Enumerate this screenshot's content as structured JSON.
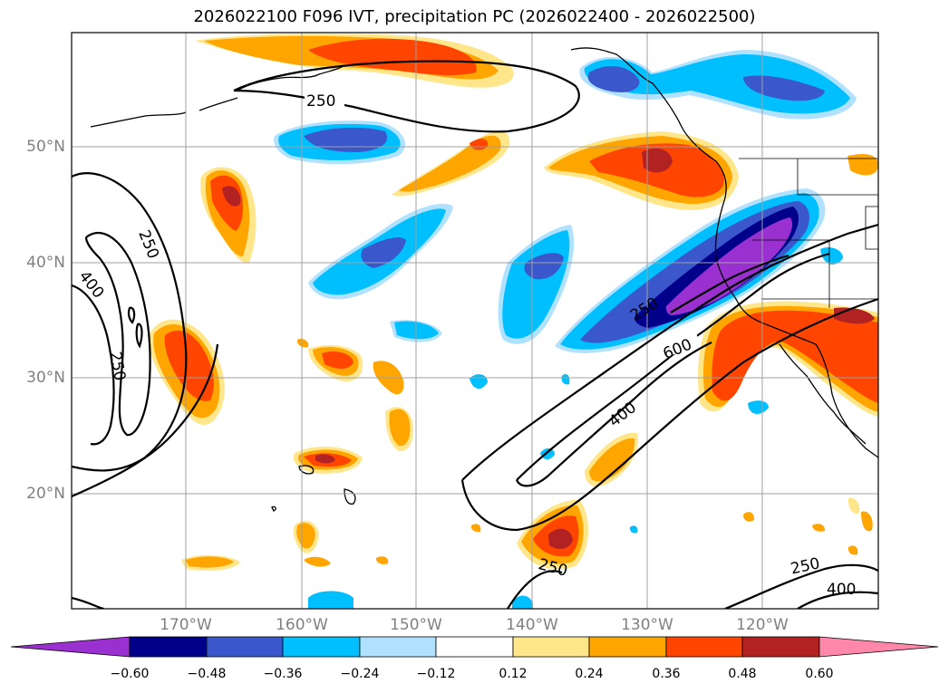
{
  "title": "2026022100 F096 IVT, precipitation PC (2026022400 - 2026022500)",
  "map": {
    "lat_labels": [
      "50°N",
      "40°N",
      "30°N",
      "20°N"
    ],
    "lon_labels": [
      "170°W",
      "160°W",
      "150°W",
      "140°W",
      "130°W",
      "120°W"
    ],
    "contour_labels": [
      {
        "id": "c250a",
        "text": "250"
      },
      {
        "id": "c250b",
        "text": "250"
      },
      {
        "id": "c400a",
        "text": "400"
      },
      {
        "id": "c250c",
        "text": "250"
      },
      {
        "id": "c250d",
        "text": "250"
      },
      {
        "id": "c600",
        "text": "600"
      },
      {
        "id": "c400b",
        "text": "400"
      },
      {
        "id": "c250e",
        "text": "250"
      },
      {
        "id": "c250f",
        "text": "250"
      },
      {
        "id": "c400c",
        "text": "400"
      }
    ]
  },
  "colorbar": {
    "ticks": [
      "−0.60",
      "−0.48",
      "−0.36",
      "−0.24",
      "−0.12",
      "0.12",
      "0.24",
      "0.36",
      "0.48",
      "0.60"
    ],
    "colors": [
      "#9b30d0",
      "#00008b",
      "#3a57cc",
      "#00bfff",
      "#b0e2ff",
      "#ffffff",
      "#ffe68a",
      "#ffa500",
      "#ff4500",
      "#b22222",
      "#ff88aa"
    ]
  },
  "colors": {
    "purple": "#9b30d0",
    "navy": "#00008b",
    "royal": "#3a57cc",
    "sky": "#00bfff",
    "pale_blue": "#b0e2ff",
    "pale_yellow": "#ffe68a",
    "orange": "#ffa500",
    "red_orange": "#ff4500",
    "brick": "#b22222",
    "pink": "#ff88aa"
  }
}
